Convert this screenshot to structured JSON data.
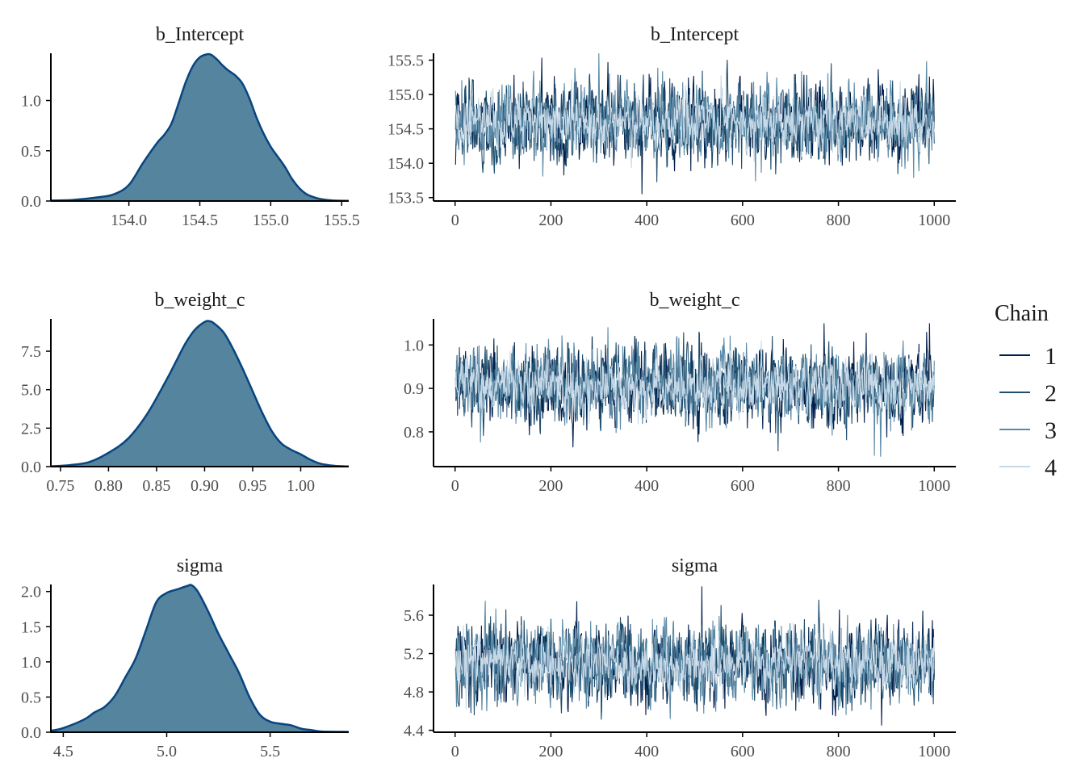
{
  "chart_data": [
    {
      "type": "area",
      "title": "b_Intercept",
      "x_range": [
        153.45,
        155.55
      ],
      "y_range": [
        0,
        1.47
      ],
      "x_ticks": [
        154.0,
        154.5,
        155.0,
        155.5
      ],
      "x_tick_labels": [
        "154.0",
        "154.5",
        "155.0",
        "155.5"
      ],
      "y_ticks": [
        0,
        0.5,
        1.0
      ],
      "y_tick_labels": [
        "0.0",
        "0.5",
        "1.0"
      ],
      "density": {
        "x": [
          153.45,
          153.6,
          153.8,
          153.9,
          154.0,
          154.1,
          154.2,
          154.25,
          154.3,
          154.35,
          154.4,
          154.45,
          154.5,
          154.55,
          154.58,
          154.62,
          154.66,
          154.7,
          154.75,
          154.8,
          154.85,
          154.9,
          154.95,
          155.0,
          155.05,
          155.1,
          155.15,
          155.2,
          155.25,
          155.3,
          155.35,
          155.4,
          155.45,
          155.55
        ],
        "y": [
          0.005,
          0.01,
          0.04,
          0.07,
          0.16,
          0.38,
          0.58,
          0.66,
          0.77,
          0.97,
          1.18,
          1.34,
          1.43,
          1.46,
          1.455,
          1.41,
          1.35,
          1.3,
          1.25,
          1.17,
          1.02,
          0.83,
          0.67,
          0.54,
          0.44,
          0.34,
          0.22,
          0.13,
          0.07,
          0.04,
          0.02,
          0.01,
          0.004,
          0.002
        ]
      }
    },
    {
      "type": "line",
      "title": "b_Intercept",
      "x_range": [
        -45,
        1045
      ],
      "y_range": [
        153.45,
        155.6
      ],
      "x_ticks": [
        0,
        200,
        400,
        600,
        800,
        1000
      ],
      "x_tick_labels": [
        "0",
        "200",
        "400",
        "600",
        "800",
        "1000"
      ],
      "y_ticks": [
        153.5,
        154.0,
        154.5,
        155.0,
        155.5
      ],
      "y_tick_labels": [
        "153.5",
        "154.0",
        "154.5",
        "155.0",
        "155.5"
      ],
      "iterations": 1000,
      "mean": 154.6,
      "sd": 0.27,
      "extremes": [
        {
          "chain": 3,
          "iteration": 300,
          "value": 155.6
        },
        {
          "chain": 1,
          "iteration": 390,
          "value": 153.55
        }
      ]
    },
    {
      "type": "area",
      "title": "b_weight_c",
      "x_range": [
        0.74,
        1.05
      ],
      "y_range": [
        0,
        9.6
      ],
      "x_ticks": [
        0.75,
        0.8,
        0.85,
        0.9,
        0.95,
        1.0
      ],
      "x_tick_labels": [
        "0.75",
        "0.80",
        "0.85",
        "0.90",
        "0.95",
        "1.00"
      ],
      "y_ticks": [
        0,
        2.5,
        5.0,
        7.5
      ],
      "y_tick_labels": [
        "0.0",
        "2.5",
        "5.0",
        "7.5"
      ],
      "density": {
        "x": [
          0.74,
          0.76,
          0.78,
          0.8,
          0.82,
          0.84,
          0.86,
          0.87,
          0.88,
          0.89,
          0.9,
          0.905,
          0.91,
          0.92,
          0.93,
          0.94,
          0.95,
          0.96,
          0.97,
          0.98,
          0.99,
          1.0,
          1.01,
          1.02,
          1.035,
          1.05
        ],
        "y": [
          0.02,
          0.1,
          0.3,
          0.9,
          1.8,
          3.4,
          5.6,
          6.8,
          8.0,
          8.9,
          9.4,
          9.45,
          9.3,
          8.7,
          7.6,
          6.3,
          4.9,
          3.5,
          2.3,
          1.5,
          1.1,
          0.8,
          0.45,
          0.2,
          0.05,
          0.01
        ]
      }
    },
    {
      "type": "line",
      "title": "b_weight_c",
      "x_range": [
        -45,
        1045
      ],
      "y_range": [
        0.72,
        1.06
      ],
      "x_ticks": [
        0,
        200,
        400,
        600,
        800,
        1000
      ],
      "x_tick_labels": [
        "0",
        "200",
        "400",
        "600",
        "800",
        "1000"
      ],
      "y_ticks": [
        0.8,
        0.9,
        1.0
      ],
      "y_tick_labels": [
        "0.8",
        "0.9",
        "1.0"
      ],
      "iterations": 1000,
      "mean": 0.905,
      "sd": 0.042,
      "extremes": [
        {
          "chain": 1,
          "iteration": 990,
          "value": 1.05
        },
        {
          "chain": 3,
          "iteration": 875,
          "value": 0.745
        }
      ]
    },
    {
      "type": "area",
      "title": "sigma",
      "x_range": [
        4.44,
        5.88
      ],
      "y_range": [
        0,
        2.1
      ],
      "x_ticks": [
        4.5,
        5.0,
        5.5
      ],
      "x_tick_labels": [
        "4.5",
        "5.0",
        "5.5"
      ],
      "y_ticks": [
        0,
        0.5,
        1.0,
        1.5,
        2.0
      ],
      "y_tick_labels": [
        "0.0",
        "0.5",
        "1.0",
        "1.5",
        "2.0"
      ],
      "density": {
        "x": [
          4.44,
          4.5,
          4.6,
          4.65,
          4.7,
          4.75,
          4.8,
          4.85,
          4.9,
          4.95,
          5.0,
          5.05,
          5.1,
          5.12,
          5.15,
          5.2,
          5.25,
          5.3,
          5.35,
          5.4,
          5.45,
          5.5,
          5.55,
          5.6,
          5.65,
          5.7,
          5.75,
          5.88
        ],
        "y": [
          0.02,
          0.06,
          0.18,
          0.28,
          0.36,
          0.52,
          0.78,
          1.05,
          1.45,
          1.85,
          1.98,
          2.03,
          2.08,
          2.09,
          2.0,
          1.72,
          1.4,
          1.12,
          0.84,
          0.5,
          0.25,
          0.15,
          0.12,
          0.1,
          0.05,
          0.03,
          0.01,
          0.005
        ]
      }
    },
    {
      "type": "line",
      "title": "sigma",
      "x_range": [
        -45,
        1045
      ],
      "y_range": [
        4.38,
        5.92
      ],
      "x_ticks": [
        0,
        200,
        400,
        600,
        800,
        1000
      ],
      "x_tick_labels": [
        "0",
        "200",
        "400",
        "600",
        "800",
        "1000"
      ],
      "y_ticks": [
        4.4,
        4.8,
        5.2,
        5.6
      ],
      "y_tick_labels": [
        "4.4",
        "4.8",
        "5.2",
        "5.6"
      ],
      "iterations": 1000,
      "mean": 5.1,
      "sd": 0.2,
      "extremes": [
        {
          "chain": 1,
          "iteration": 515,
          "value": 5.9
        },
        {
          "chain": 1,
          "iteration": 890,
          "value": 4.45
        }
      ]
    }
  ],
  "legend": {
    "title": "Chain",
    "items": [
      {
        "label": "1",
        "color": "#011f4b"
      },
      {
        "label": "2",
        "color": "#1f4e6e"
      },
      {
        "label": "3",
        "color": "#5b8aa6"
      },
      {
        "label": "4",
        "color": "#c8dae8"
      }
    ]
  },
  "colors": {
    "density_fill": "#55849f",
    "density_line": "#08457e",
    "chains": [
      "#011f4b",
      "#1f4e6e",
      "#5b8aa6",
      "#c8dae8"
    ]
  }
}
